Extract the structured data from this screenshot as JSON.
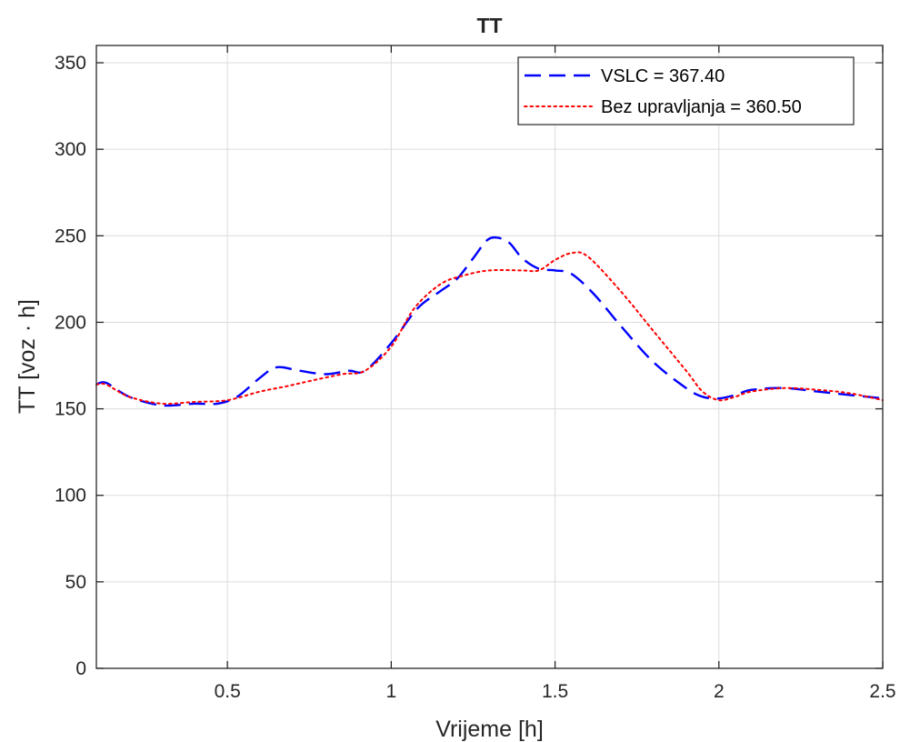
{
  "chart_data": {
    "type": "line",
    "title": "TT",
    "xlabel": "Vrijeme [h]",
    "ylabel": "TT [voz · h]",
    "xlim": [
      0.1,
      2.5
    ],
    "ylim": [
      0,
      360
    ],
    "xticks": [
      0.5,
      1,
      1.5,
      2,
      2.5
    ],
    "xtick_labels": [
      "0.5",
      "1",
      "1.5",
      "2",
      "2.5"
    ],
    "yticks": [
      0,
      50,
      100,
      150,
      200,
      250,
      300,
      350
    ],
    "ytick_labels": [
      "0",
      "50",
      "100",
      "150",
      "200",
      "250",
      "300",
      "350"
    ],
    "grid": true,
    "legend_position": "top-right",
    "series": [
      {
        "name": "VSLC = 367.40",
        "color": "#0000ff",
        "style": "dashed",
        "x": [
          0.1,
          0.13,
          0.2,
          0.3,
          0.4,
          0.47,
          0.53,
          0.6,
          0.65,
          0.72,
          0.8,
          0.87,
          0.92,
          1.0,
          1.08,
          1.15,
          1.2,
          1.25,
          1.29,
          1.32,
          1.36,
          1.4,
          1.45,
          1.5,
          1.55,
          1.62,
          1.7,
          1.8,
          1.9,
          1.95,
          2.0,
          2.05,
          2.1,
          2.2,
          2.3,
          2.4,
          2.5
        ],
        "y": [
          164,
          165,
          157,
          152,
          153,
          153,
          157,
          168,
          174,
          172,
          170,
          172,
          172,
          188,
          208,
          218,
          225,
          237,
          247,
          249,
          246,
          237,
          231,
          230,
          228,
          216,
          198,
          177,
          162,
          157,
          156,
          158,
          161,
          162,
          160,
          158,
          156
        ]
      },
      {
        "name": "Bez upravljanja = 360.50",
        "color": "#ff0000",
        "style": "dotted",
        "x": [
          0.1,
          0.13,
          0.2,
          0.3,
          0.4,
          0.5,
          0.6,
          0.68,
          0.75,
          0.85,
          0.92,
          1.0,
          1.07,
          1.15,
          1.22,
          1.3,
          1.4,
          1.45,
          1.5,
          1.55,
          1.6,
          1.7,
          1.8,
          1.9,
          1.95,
          2.0,
          2.05,
          2.1,
          2.2,
          2.3,
          2.4,
          2.5
        ],
        "y": [
          164,
          164,
          157,
          153,
          154,
          155,
          160,
          163,
          166,
          170,
          172,
          186,
          208,
          222,
          227,
          230,
          230,
          230,
          236,
          240,
          238,
          218,
          195,
          172,
          160,
          155,
          157,
          160,
          162,
          161,
          159,
          155
        ]
      }
    ]
  }
}
